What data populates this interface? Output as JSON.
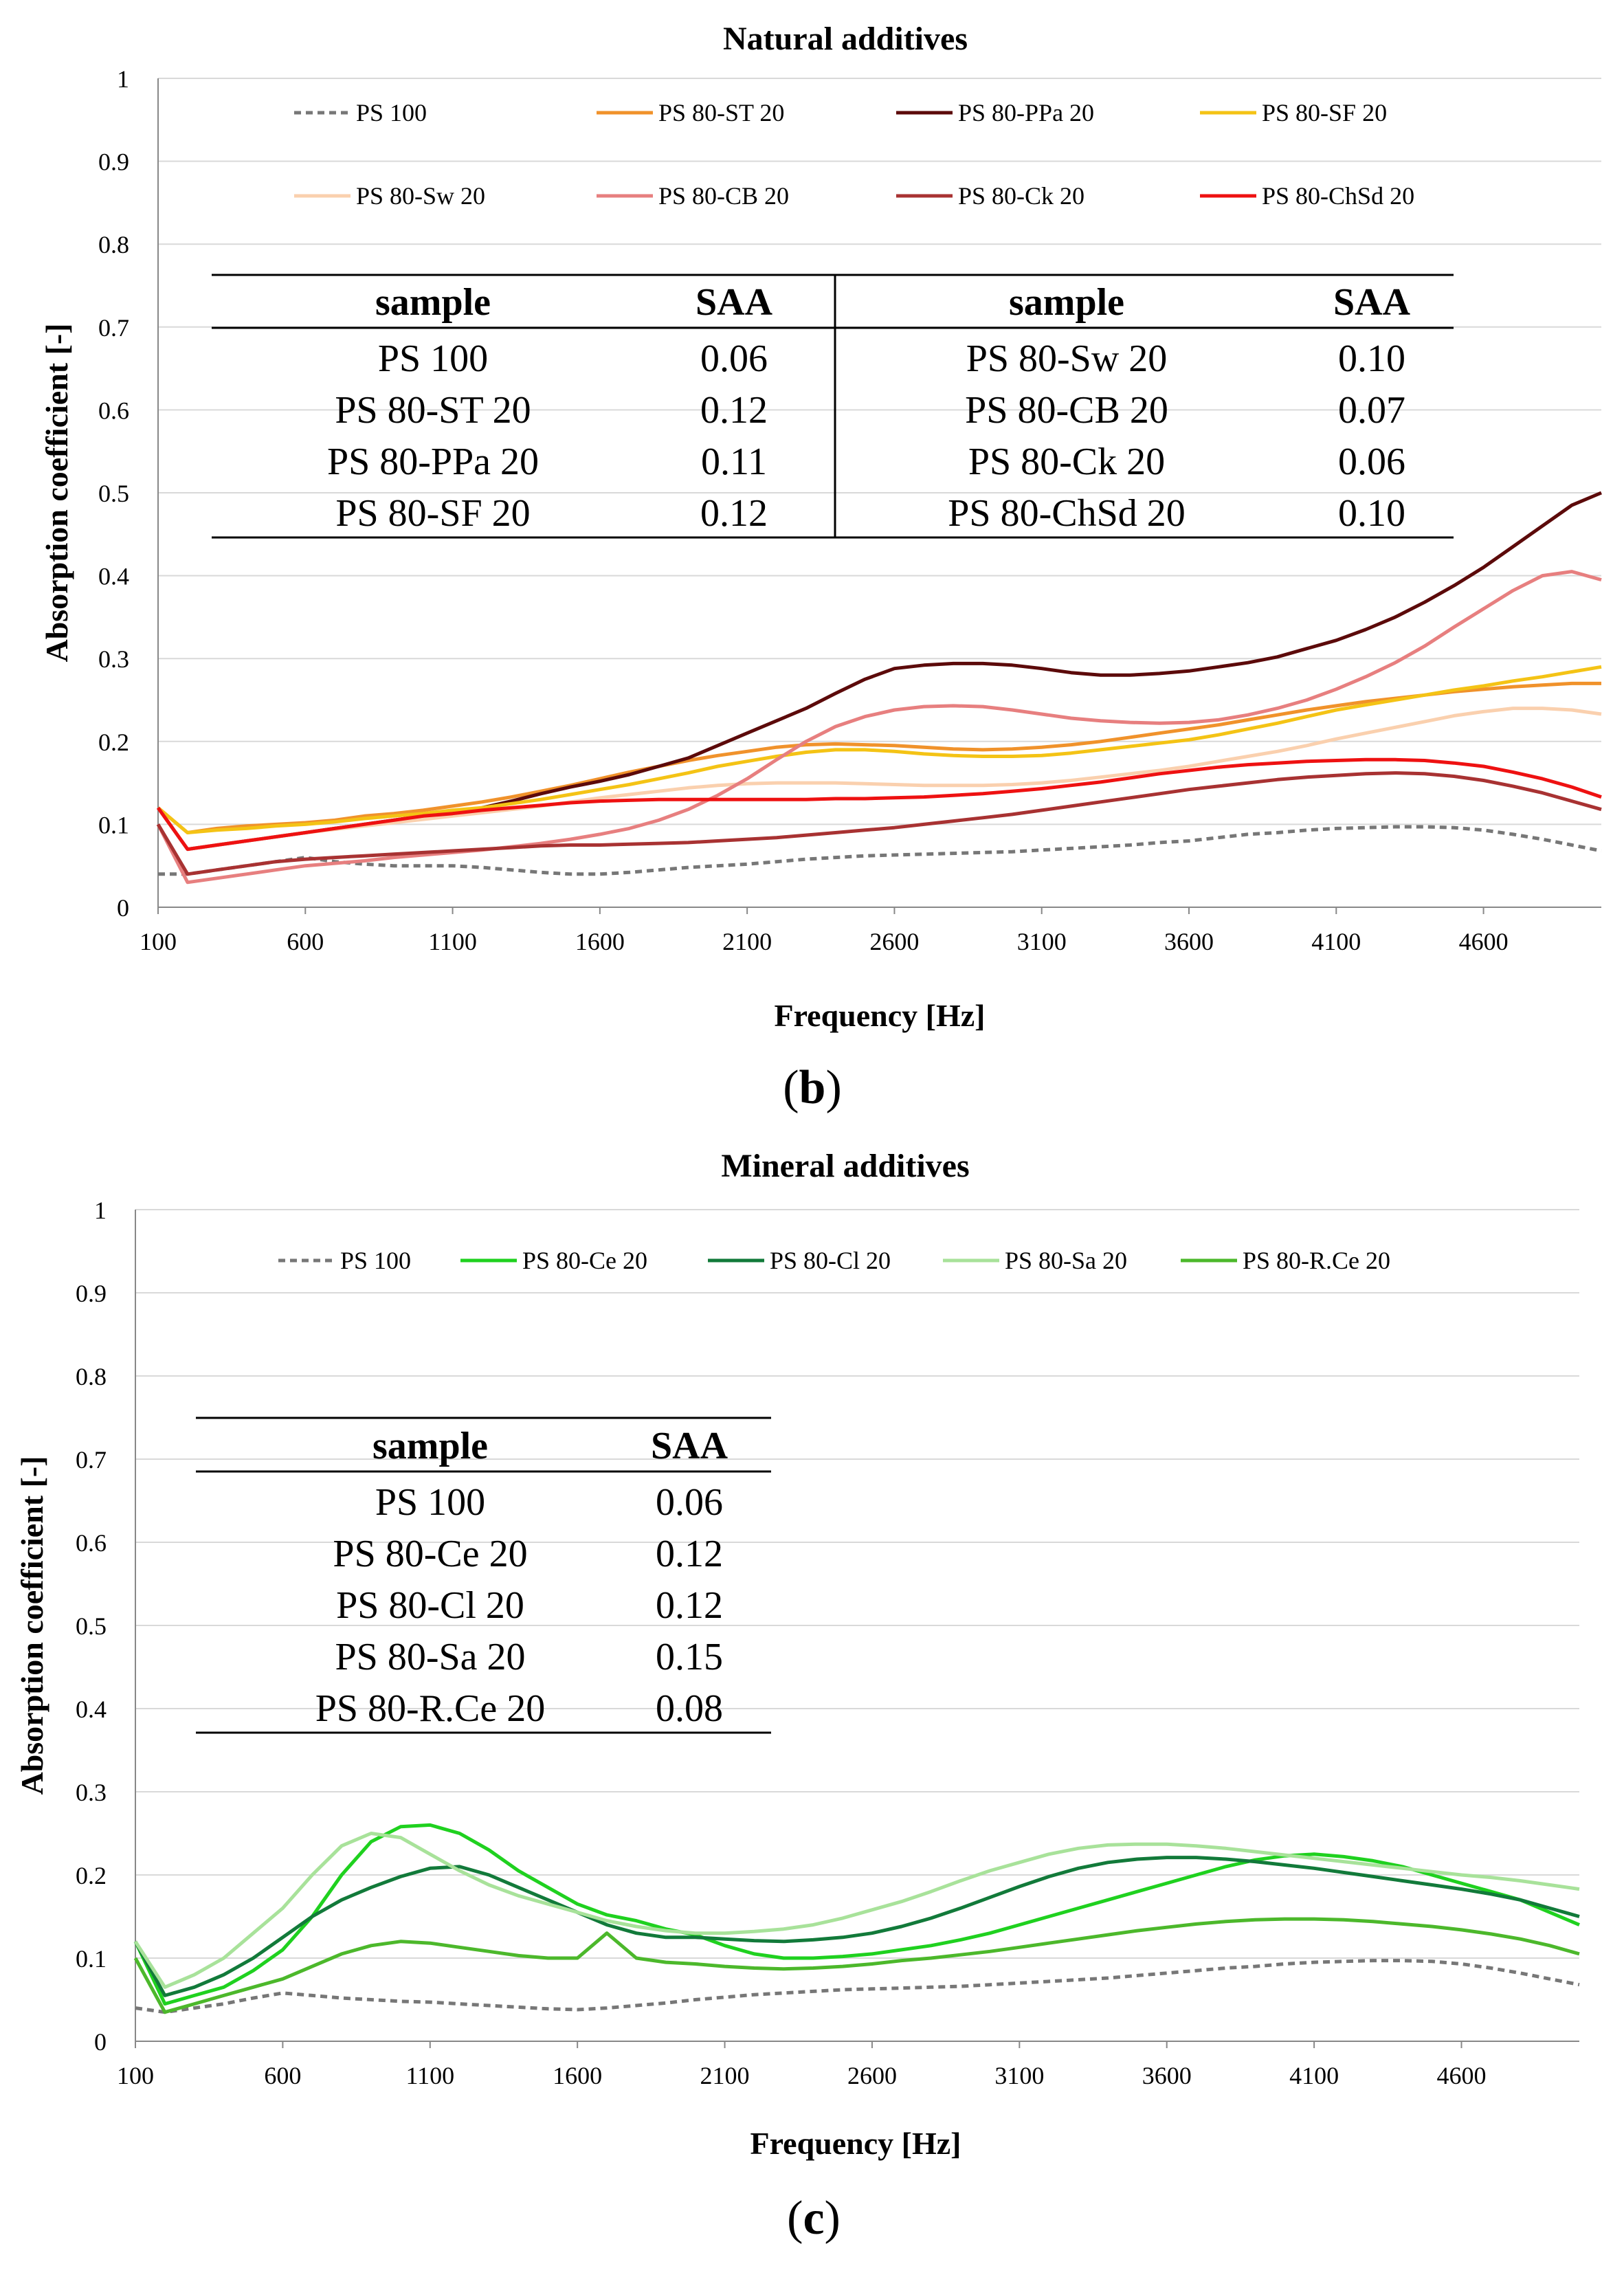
{
  "chart_data": [
    {
      "type": "line",
      "title": "Natural additives",
      "xlabel": "Frequency [Hz]",
      "ylabel": "Absorption coefficient [-]",
      "panel_label": "b",
      "xlim": [
        100,
        5000
      ],
      "ylim": [
        0,
        1
      ],
      "xticks": [
        "100",
        "600",
        "1100",
        "1600",
        "2100",
        "2600",
        "3100",
        "3600",
        "4100",
        "4600"
      ],
      "yticks": [
        "0",
        "0.1",
        "0.2",
        "0.3",
        "0.4",
        "0.5",
        "0.6",
        "0.7",
        "0.8",
        "0.9",
        "1"
      ],
      "grid": "horizontal",
      "legend_position": "top",
      "x": [
        100,
        200,
        300,
        400,
        500,
        600,
        700,
        800,
        900,
        1000,
        1100,
        1200,
        1300,
        1400,
        1500,
        1600,
        1700,
        1800,
        1900,
        2000,
        2100,
        2200,
        2300,
        2400,
        2500,
        2600,
        2700,
        2800,
        2900,
        3000,
        3100,
        3200,
        3300,
        3400,
        3500,
        3600,
        3700,
        3800,
        3900,
        4000,
        4100,
        4200,
        4300,
        4400,
        4500,
        4600,
        4700,
        4800,
        4900,
        5000
      ],
      "series": [
        {
          "name": "PS 100",
          "color": "#777777",
          "dash": true,
          "values": [
            0.04,
            0.04,
            0.045,
            0.05,
            0.055,
            0.06,
            0.055,
            0.052,
            0.05,
            0.05,
            0.05,
            0.048,
            0.045,
            0.042,
            0.04,
            0.04,
            0.042,
            0.045,
            0.048,
            0.05,
            0.052,
            0.055,
            0.058,
            0.06,
            0.062,
            0.063,
            0.064,
            0.065,
            0.066,
            0.067,
            0.069,
            0.071,
            0.073,
            0.075,
            0.078,
            0.08,
            0.084,
            0.088,
            0.09,
            0.093,
            0.095,
            0.096,
            0.097,
            0.097,
            0.096,
            0.093,
            0.088,
            0.082,
            0.075,
            0.068
          ]
        },
        {
          "name": "PS 80-ST 20",
          "color": "#F0922B",
          "values": [
            0.12,
            0.09,
            0.095,
            0.098,
            0.1,
            0.102,
            0.105,
            0.11,
            0.113,
            0.117,
            0.122,
            0.127,
            0.133,
            0.14,
            0.147,
            0.155,
            0.163,
            0.17,
            0.177,
            0.183,
            0.188,
            0.193,
            0.196,
            0.197,
            0.196,
            0.195,
            0.193,
            0.191,
            0.19,
            0.191,
            0.193,
            0.196,
            0.2,
            0.205,
            0.21,
            0.215,
            0.22,
            0.226,
            0.232,
            0.238,
            0.243,
            0.248,
            0.252,
            0.256,
            0.26,
            0.263,
            0.266,
            0.268,
            0.27,
            0.27
          ]
        },
        {
          "name": "PS 80-PPa 20",
          "color": "#5C0A0A",
          "values": [
            0.12,
            0.07,
            0.075,
            0.08,
            0.085,
            0.09,
            0.095,
            0.1,
            0.105,
            0.11,
            0.115,
            0.12,
            0.128,
            0.137,
            0.145,
            0.152,
            0.16,
            0.17,
            0.18,
            0.195,
            0.21,
            0.225,
            0.24,
            0.258,
            0.275,
            0.288,
            0.292,
            0.294,
            0.294,
            0.292,
            0.288,
            0.283,
            0.28,
            0.28,
            0.282,
            0.285,
            0.29,
            0.295,
            0.302,
            0.312,
            0.322,
            0.335,
            0.35,
            0.368,
            0.388,
            0.41,
            0.435,
            0.46,
            0.485,
            0.5
          ]
        },
        {
          "name": "PS 80-SF 20",
          "color": "#F4C315",
          "values": [
            0.12,
            0.09,
            0.093,
            0.095,
            0.098,
            0.1,
            0.103,
            0.107,
            0.11,
            0.113,
            0.117,
            0.12,
            0.125,
            0.13,
            0.136,
            0.142,
            0.148,
            0.155,
            0.162,
            0.17,
            0.176,
            0.182,
            0.187,
            0.19,
            0.19,
            0.188,
            0.185,
            0.183,
            0.182,
            0.182,
            0.183,
            0.186,
            0.19,
            0.194,
            0.198,
            0.202,
            0.208,
            0.215,
            0.222,
            0.23,
            0.238,
            0.244,
            0.25,
            0.256,
            0.262,
            0.267,
            0.273,
            0.278,
            0.284,
            0.29
          ]
        },
        {
          "name": "PS 80-Sw 20",
          "color": "#FAD0AE",
          "values": [
            0.12,
            0.07,
            0.075,
            0.08,
            0.085,
            0.09,
            0.094,
            0.098,
            0.102,
            0.106,
            0.11,
            0.114,
            0.118,
            0.122,
            0.127,
            0.132,
            0.136,
            0.14,
            0.144,
            0.147,
            0.149,
            0.15,
            0.15,
            0.15,
            0.149,
            0.148,
            0.147,
            0.147,
            0.147,
            0.148,
            0.15,
            0.153,
            0.157,
            0.161,
            0.165,
            0.17,
            0.176,
            0.182,
            0.188,
            0.195,
            0.203,
            0.21,
            0.217,
            0.224,
            0.231,
            0.236,
            0.24,
            0.24,
            0.238,
            0.233
          ]
        },
        {
          "name": "PS 80-CB 20",
          "color": "#E77F7F",
          "values": [
            0.1,
            0.03,
            0.035,
            0.04,
            0.045,
            0.05,
            0.053,
            0.056,
            0.06,
            0.063,
            0.066,
            0.069,
            0.073,
            0.077,
            0.082,
            0.088,
            0.095,
            0.105,
            0.118,
            0.135,
            0.155,
            0.178,
            0.2,
            0.218,
            0.23,
            0.238,
            0.242,
            0.243,
            0.242,
            0.238,
            0.233,
            0.228,
            0.225,
            0.223,
            0.222,
            0.223,
            0.226,
            0.232,
            0.24,
            0.25,
            0.263,
            0.278,
            0.295,
            0.315,
            0.338,
            0.36,
            0.382,
            0.4,
            0.405,
            0.395
          ]
        },
        {
          "name": "PS 80-Ck 20",
          "color": "#A83232",
          "values": [
            0.1,
            0.04,
            0.045,
            0.05,
            0.055,
            0.058,
            0.06,
            0.062,
            0.064,
            0.066,
            0.068,
            0.07,
            0.072,
            0.074,
            0.075,
            0.075,
            0.076,
            0.077,
            0.078,
            0.08,
            0.082,
            0.084,
            0.087,
            0.09,
            0.093,
            0.096,
            0.1,
            0.104,
            0.108,
            0.112,
            0.117,
            0.122,
            0.127,
            0.132,
            0.137,
            0.142,
            0.146,
            0.15,
            0.154,
            0.157,
            0.159,
            0.161,
            0.162,
            0.161,
            0.158,
            0.153,
            0.146,
            0.138,
            0.128,
            0.118
          ]
        },
        {
          "name": "PS 80-ChSd 20",
          "color": "#EE1111",
          "values": [
            0.12,
            0.07,
            0.075,
            0.08,
            0.085,
            0.09,
            0.095,
            0.1,
            0.105,
            0.11,
            0.113,
            0.117,
            0.12,
            0.123,
            0.126,
            0.128,
            0.129,
            0.13,
            0.13,
            0.13,
            0.13,
            0.13,
            0.13,
            0.131,
            0.131,
            0.132,
            0.133,
            0.135,
            0.137,
            0.14,
            0.143,
            0.147,
            0.151,
            0.156,
            0.161,
            0.165,
            0.169,
            0.172,
            0.174,
            0.176,
            0.177,
            0.178,
            0.178,
            0.177,
            0.174,
            0.17,
            0.163,
            0.155,
            0.145,
            0.133
          ]
        }
      ],
      "saa_table": {
        "headers": [
          "sample",
          "SAA",
          "sample",
          "SAA"
        ],
        "rows": [
          [
            "PS 100",
            "0.06",
            "PS 80-Sw 20",
            "0.10"
          ],
          [
            "PS 80-ST 20",
            "0.12",
            "PS 80-CB 20",
            "0.07"
          ],
          [
            "PS 80-PPa 20",
            "0.11",
            "PS 80-Ck 20",
            "0.06"
          ],
          [
            "PS 80-SF 20",
            "0.12",
            "PS 80-ChSd 20",
            "0.10"
          ]
        ]
      }
    },
    {
      "type": "line",
      "title": "Mineral additives",
      "xlabel": "Frequency [Hz]",
      "ylabel": "Absorption coefficient [-]",
      "panel_label": "c",
      "xlim": [
        100,
        5000
      ],
      "ylim": [
        0,
        1
      ],
      "xticks": [
        "100",
        "600",
        "1100",
        "1600",
        "2100",
        "2600",
        "3100",
        "3600",
        "4100",
        "4600"
      ],
      "yticks": [
        "0",
        "0.1",
        "0.2",
        "0.3",
        "0.4",
        "0.5",
        "0.6",
        "0.7",
        "0.8",
        "0.9",
        "1"
      ],
      "grid": "horizontal",
      "legend_position": "top",
      "x": [
        100,
        200,
        300,
        400,
        500,
        600,
        700,
        800,
        900,
        1000,
        1100,
        1200,
        1300,
        1400,
        1500,
        1600,
        1700,
        1800,
        1900,
        2000,
        2100,
        2200,
        2300,
        2400,
        2500,
        2600,
        2700,
        2800,
        2900,
        3000,
        3100,
        3200,
        3300,
        3400,
        3500,
        3600,
        3700,
        3800,
        3900,
        4000,
        4100,
        4200,
        4300,
        4400,
        4500,
        4600,
        4700,
        4800,
        4900,
        5000
      ],
      "series": [
        {
          "name": "PS 100",
          "color": "#777777",
          "dash": true,
          "values": [
            0.04,
            0.035,
            0.04,
            0.045,
            0.052,
            0.058,
            0.055,
            0.052,
            0.05,
            0.048,
            0.047,
            0.045,
            0.043,
            0.041,
            0.039,
            0.038,
            0.04,
            0.043,
            0.046,
            0.05,
            0.053,
            0.056,
            0.058,
            0.06,
            0.062,
            0.063,
            0.064,
            0.065,
            0.066,
            0.068,
            0.07,
            0.072,
            0.074,
            0.076,
            0.079,
            0.082,
            0.085,
            0.088,
            0.09,
            0.093,
            0.095,
            0.096,
            0.097,
            0.097,
            0.096,
            0.093,
            0.088,
            0.082,
            0.075,
            0.068
          ]
        },
        {
          "name": "PS 80-Ce 20",
          "color": "#1FD11F",
          "values": [
            0.12,
            0.045,
            0.055,
            0.065,
            0.085,
            0.11,
            0.15,
            0.2,
            0.24,
            0.258,
            0.26,
            0.25,
            0.23,
            0.205,
            0.185,
            0.165,
            0.152,
            0.145,
            0.135,
            0.128,
            0.115,
            0.105,
            0.1,
            0.1,
            0.102,
            0.105,
            0.11,
            0.115,
            0.122,
            0.13,
            0.14,
            0.15,
            0.16,
            0.17,
            0.18,
            0.19,
            0.2,
            0.21,
            0.218,
            0.223,
            0.225,
            0.222,
            0.217,
            0.21,
            0.2,
            0.19,
            0.18,
            0.17,
            0.155,
            0.14
          ]
        },
        {
          "name": "PS 80-Cl 20",
          "color": "#127A3A",
          "values": [
            0.12,
            0.055,
            0.065,
            0.08,
            0.1,
            0.125,
            0.15,
            0.17,
            0.185,
            0.198,
            0.208,
            0.21,
            0.2,
            0.185,
            0.17,
            0.155,
            0.14,
            0.13,
            0.125,
            0.125,
            0.123,
            0.121,
            0.12,
            0.122,
            0.125,
            0.13,
            0.138,
            0.148,
            0.16,
            0.173,
            0.186,
            0.198,
            0.208,
            0.215,
            0.219,
            0.221,
            0.221,
            0.219,
            0.216,
            0.212,
            0.208,
            0.203,
            0.198,
            0.193,
            0.188,
            0.183,
            0.177,
            0.17,
            0.16,
            0.15
          ]
        },
        {
          "name": "PS 80-Sa 20",
          "color": "#A8E29A",
          "values": [
            0.12,
            0.065,
            0.08,
            0.1,
            0.13,
            0.16,
            0.2,
            0.235,
            0.25,
            0.245,
            0.225,
            0.205,
            0.188,
            0.175,
            0.165,
            0.155,
            0.145,
            0.138,
            0.133,
            0.13,
            0.13,
            0.132,
            0.135,
            0.14,
            0.148,
            0.158,
            0.168,
            0.18,
            0.193,
            0.205,
            0.215,
            0.225,
            0.232,
            0.236,
            0.237,
            0.237,
            0.235,
            0.232,
            0.228,
            0.224,
            0.22,
            0.216,
            0.212,
            0.208,
            0.204,
            0.2,
            0.197,
            0.193,
            0.188,
            0.183
          ]
        },
        {
          "name": "PS 80-R.Ce 20",
          "color": "#4CB82B",
          "values": [
            0.1,
            0.035,
            0.045,
            0.055,
            0.065,
            0.075,
            0.09,
            0.105,
            0.115,
            0.12,
            0.118,
            0.113,
            0.108,
            0.103,
            0.1,
            0.1,
            0.13,
            0.1,
            0.095,
            0.093,
            0.09,
            0.088,
            0.087,
            0.088,
            0.09,
            0.093,
            0.097,
            0.1,
            0.104,
            0.108,
            0.113,
            0.118,
            0.123,
            0.128,
            0.133,
            0.137,
            0.141,
            0.144,
            0.146,
            0.147,
            0.147,
            0.146,
            0.144,
            0.141,
            0.138,
            0.134,
            0.129,
            0.123,
            0.115,
            0.105
          ]
        }
      ],
      "saa_table": {
        "headers": [
          "sample",
          "SAA"
        ],
        "rows": [
          [
            "PS 100",
            "0.06"
          ],
          [
            "PS 80-Ce 20",
            "0.12"
          ],
          [
            "PS 80-Cl 20",
            "0.12"
          ],
          [
            "PS 80-Sa 20",
            "0.15"
          ],
          [
            "PS 80-R.Ce 20",
            "0.08"
          ]
        ]
      }
    }
  ]
}
